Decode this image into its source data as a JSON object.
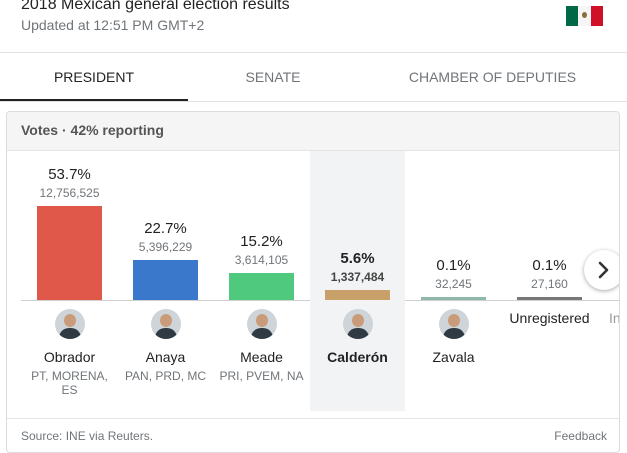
{
  "header": {
    "title": "2018 Mexican general election results",
    "updated": "Updated at 12:51 PM GMT+2",
    "flag_icon": "mexico-flag-icon"
  },
  "tabs": [
    {
      "label": "PRESIDENT",
      "active": true
    },
    {
      "label": "SENATE",
      "active": false
    },
    {
      "label": "CHAMBER OF DEPUTIES",
      "active": false
    }
  ],
  "votes_label": "Votes · 42% reporting",
  "candidates": [
    {
      "name": "Obrador",
      "pct": "53.7%",
      "votes": "12,756,525",
      "party": "PT, MORENA, ES",
      "share": 53.7,
      "color": "#e0584a",
      "highlighted": false
    },
    {
      "name": "Anaya",
      "pct": "22.7%",
      "votes": "5,396,229",
      "party": "PAN, PRD, MC",
      "share": 22.7,
      "color": "#3a78cc",
      "highlighted": false
    },
    {
      "name": "Meade",
      "pct": "15.2%",
      "votes": "3,614,105",
      "party": "PRI, PVEM, NA",
      "share": 15.2,
      "color": "#4fc97e",
      "highlighted": false
    },
    {
      "name": "Calderón",
      "pct": "5.6%",
      "votes": "1,337,484",
      "party": "",
      "share": 5.6,
      "color": "#c9a06a",
      "highlighted": true
    },
    {
      "name": "Zavala",
      "pct": "0.1%",
      "votes": "32,245",
      "party": "",
      "share": 0.1,
      "color": "#8fb8a8",
      "highlighted": false
    },
    {
      "name": "Unregistered",
      "pct": "0.1%",
      "votes": "27,160",
      "party": "",
      "share": 0.1,
      "color": "#777777",
      "highlighted": false
    }
  ],
  "partial_next_label": "In",
  "next_icon": "chevron-right-icon",
  "footer": {
    "source": "Source: INE via Reuters.",
    "feedback": "Feedback"
  }
}
